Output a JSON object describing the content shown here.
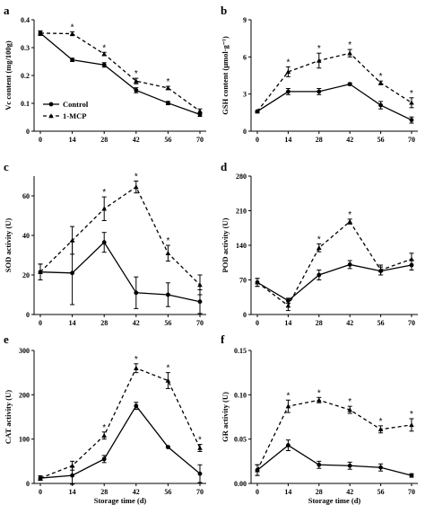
{
  "legend": {
    "control": "Control",
    "mcp": "1-MCP"
  },
  "x_axis_title": "Storage time (d)",
  "chart_data": [
    {
      "panel": "a",
      "type": "line",
      "ylabel": "Vc content (mg/100g)",
      "x": [
        0,
        14,
        28,
        42,
        56,
        70
      ],
      "ylim": [
        0,
        0.4
      ],
      "yticks": [
        0,
        0.1,
        0.2,
        0.3,
        0.4
      ],
      "ytick_labels": [
        "0",
        "0.1",
        "0.2",
        "0.3",
        "0.4"
      ],
      "series": [
        {
          "name": "Control",
          "values": [
            0.352,
            0.256,
            0.238,
            0.147,
            0.101,
            0.06
          ],
          "err": [
            0.008,
            0.006,
            0.008,
            0.009,
            0.006,
            0.007
          ]
        },
        {
          "name": "1-MCP",
          "values": [
            0.352,
            0.35,
            0.277,
            0.18,
            0.155,
            0.072
          ],
          "err": [
            0.008,
            0.007,
            0.006,
            0.01,
            0.006,
            0.008
          ]
        }
      ],
      "significant_x": [
        14,
        28,
        42,
        56
      ]
    },
    {
      "panel": "b",
      "type": "line",
      "ylabel": "GSH content (μmol·g⁻¹)",
      "x": [
        0,
        14,
        28,
        42,
        56,
        70
      ],
      "ylim": [
        0,
        9
      ],
      "yticks": [
        0,
        3,
        6,
        9
      ],
      "ytick_labels": [
        "0",
        "3",
        "6",
        "9"
      ],
      "series": [
        {
          "name": "Control",
          "values": [
            1.6,
            3.2,
            3.2,
            3.8,
            2.1,
            0.9
          ],
          "err": [
            0.05,
            0.25,
            0.25,
            0.1,
            0.3,
            0.25
          ]
        },
        {
          "name": "1-MCP",
          "values": [
            1.6,
            4.8,
            5.7,
            6.3,
            3.9,
            2.3
          ],
          "err": [
            0.05,
            0.4,
            0.6,
            0.3,
            0.15,
            0.4
          ]
        }
      ],
      "significant_x": [
        14,
        28,
        42,
        56,
        70
      ]
    },
    {
      "panel": "c",
      "type": "line",
      "ylabel": "SOD activity (U)",
      "x": [
        0,
        14,
        28,
        42,
        56,
        70
      ],
      "ylim": [
        0,
        70
      ],
      "yticks": [
        0,
        20,
        40,
        60
      ],
      "ytick_labels": [
        "0",
        "20",
        "40",
        "60"
      ],
      "series": [
        {
          "name": "Control",
          "values": [
            21.5,
            21,
            36.5,
            11,
            10,
            6.5
          ],
          "err": [
            4,
            16,
            5,
            8,
            6,
            6
          ]
        },
        {
          "name": "1-MCP",
          "values": [
            21.5,
            37.5,
            53.5,
            64.5,
            31,
            15
          ],
          "err": [
            4,
            7,
            6,
            3,
            4,
            5
          ]
        }
      ],
      "significant_x": [
        28,
        42,
        56
      ]
    },
    {
      "panel": "d",
      "type": "line",
      "ylabel": "POD activity (U)",
      "x": [
        0,
        14,
        28,
        42,
        56,
        70
      ],
      "ylim": [
        0,
        280
      ],
      "yticks": [
        0,
        70,
        140,
        210,
        280
      ],
      "ytick_labels": [
        "0",
        "70",
        "140",
        "210",
        "280"
      ],
      "series": [
        {
          "name": "Control",
          "values": [
            65,
            28,
            80,
            101,
            88,
            100
          ],
          "err": [
            8,
            5,
            10,
            8,
            8,
            10
          ]
        },
        {
          "name": "1-MCP",
          "values": [
            65,
            18,
            135,
            188,
            90,
            112
          ],
          "err": [
            8,
            10,
            8,
            5,
            10,
            12
          ]
        }
      ],
      "significant_x": [
        28,
        42
      ]
    },
    {
      "panel": "e",
      "type": "line",
      "ylabel": "CAT activity (U)",
      "x": [
        0,
        14,
        28,
        42,
        56,
        70
      ],
      "ylim": [
        0,
        300
      ],
      "yticks": [
        0,
        100,
        200,
        300
      ],
      "ytick_labels": [
        "0",
        "100",
        "200",
        "300"
      ],
      "series": [
        {
          "name": "Control",
          "values": [
            12,
            18,
            55,
            175,
            82,
            22
          ],
          "err": [
            5,
            20,
            8,
            8,
            2,
            20
          ]
        },
        {
          "name": "1-MCP",
          "values": [
            12,
            40,
            108,
            260,
            232,
            80
          ],
          "err": [
            5,
            10,
            8,
            10,
            18,
            8
          ]
        }
      ],
      "significant_x": [
        28,
        42,
        56,
        70
      ]
    },
    {
      "panel": "f",
      "type": "line",
      "ylabel": "GR activity (U)",
      "x": [
        0,
        14,
        28,
        42,
        56,
        70
      ],
      "ylim": [
        0,
        0.15
      ],
      "yticks": [
        0,
        0.05,
        0.1,
        0.15
      ],
      "ytick_labels": [
        "0.00",
        "0.05",
        "0.10",
        "0.15"
      ],
      "series": [
        {
          "name": "Control",
          "values": [
            0.015,
            0.043,
            0.021,
            0.02,
            0.018,
            0.009
          ],
          "err": [
            0.006,
            0.006,
            0.004,
            0.004,
            0.004,
            0.002
          ]
        },
        {
          "name": "1-MCP",
          "values": [
            0.015,
            0.087,
            0.094,
            0.083,
            0.061,
            0.066
          ],
          "err": [
            0.006,
            0.007,
            0.003,
            0.004,
            0.004,
            0.007
          ]
        }
      ],
      "significant_x": [
        14,
        28,
        42,
        56,
        70
      ]
    }
  ]
}
